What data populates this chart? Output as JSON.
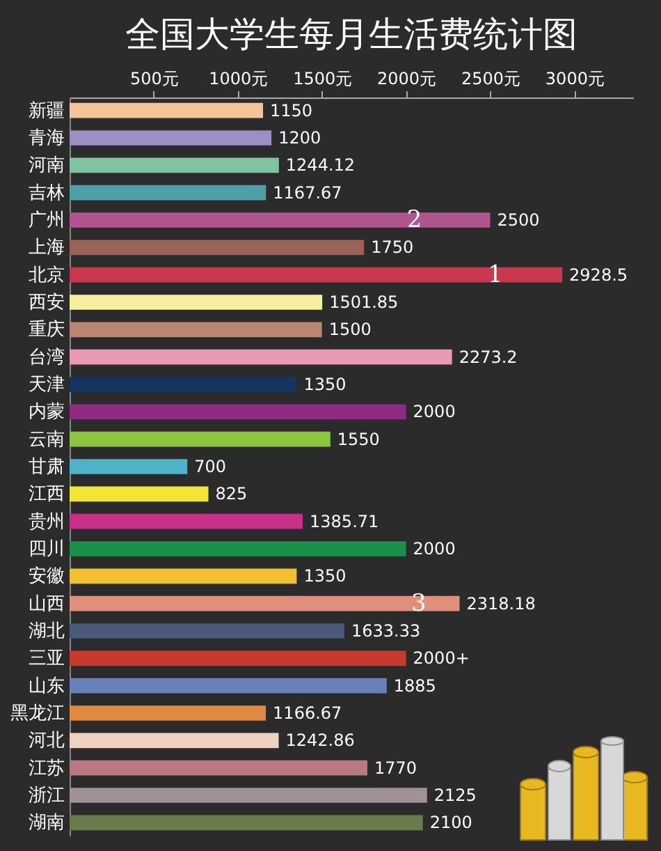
{
  "chart_data": {
    "type": "bar",
    "orientation": "horizontal",
    "title": "全国大学生每月生活费统计图",
    "categories": [
      "新疆",
      "青海",
      "河南",
      "吉林",
      "广州",
      "上海",
      "北京",
      "西安",
      "重庆",
      "台湾",
      "天津",
      "内蒙",
      "云南",
      "甘肃",
      "江西",
      "贵州",
      "四川",
      "安徽",
      "山西",
      "湖北",
      "三亚",
      "山东",
      "黑龙江",
      "河北",
      "江苏",
      "浙江",
      "湖南"
    ],
    "values": [
      1150,
      1200,
      1244.12,
      1167.67,
      2500,
      1750,
      2928.5,
      1501.85,
      1500,
      2273.2,
      1350,
      2000,
      1550,
      700,
      825,
      1385.71,
      2000,
      1350,
      2318.18,
      1633.33,
      2000,
      1885,
      1166.67,
      1242.86,
      1770,
      2125,
      2100
    ],
    "value_labels": [
      "1150",
      "1200",
      "1244.12",
      "1167.67",
      "2500",
      "1750",
      "2928.5",
      "1501.85",
      "1500",
      "2273.2",
      "1350",
      "2000",
      "1550",
      "700",
      "825",
      "1385.71",
      "2000",
      "1350",
      "2318.18",
      "1633.33",
      "2000+",
      "1885",
      "1166.67",
      "1242.86",
      "1770",
      "2125",
      "2100"
    ],
    "colors": [
      "#f2c59a",
      "#9b8fc4",
      "#7fc4a0",
      "#4f9fa8",
      "#b0558e",
      "#9a6356",
      "#c8384e",
      "#f5f0a0",
      "#b98670",
      "#e89ab5",
      "#13355e",
      "#8e2a82",
      "#8cc63f",
      "#4fb3c8",
      "#f2e534",
      "#c8308a",
      "#1a9048",
      "#f0c030",
      "#e0907a",
      "#4a5a7a",
      "#c83a2c",
      "#6a80b8",
      "#e08a40",
      "#f0d0c0",
      "#b87a80",
      "#a09098",
      "#6a7a48"
    ],
    "xlim": [
      0,
      3350
    ],
    "xticks": [
      {
        "value": 500,
        "label": "500元"
      },
      {
        "value": 1000,
        "label": "1000元"
      },
      {
        "value": 1500,
        "label": "1500元"
      },
      {
        "value": 2000,
        "label": "2000元"
      },
      {
        "value": 2500,
        "label": "2500元"
      },
      {
        "value": 3000,
        "label": "3000元"
      }
    ],
    "annotations": [
      {
        "text": "2",
        "x": 2050,
        "y": "广州"
      },
      {
        "text": "1",
        "x": 2530,
        "y": "北京"
      },
      {
        "text": "3",
        "x": 2075,
        "y": "山西"
      }
    ],
    "grid": false,
    "legend": false
  }
}
